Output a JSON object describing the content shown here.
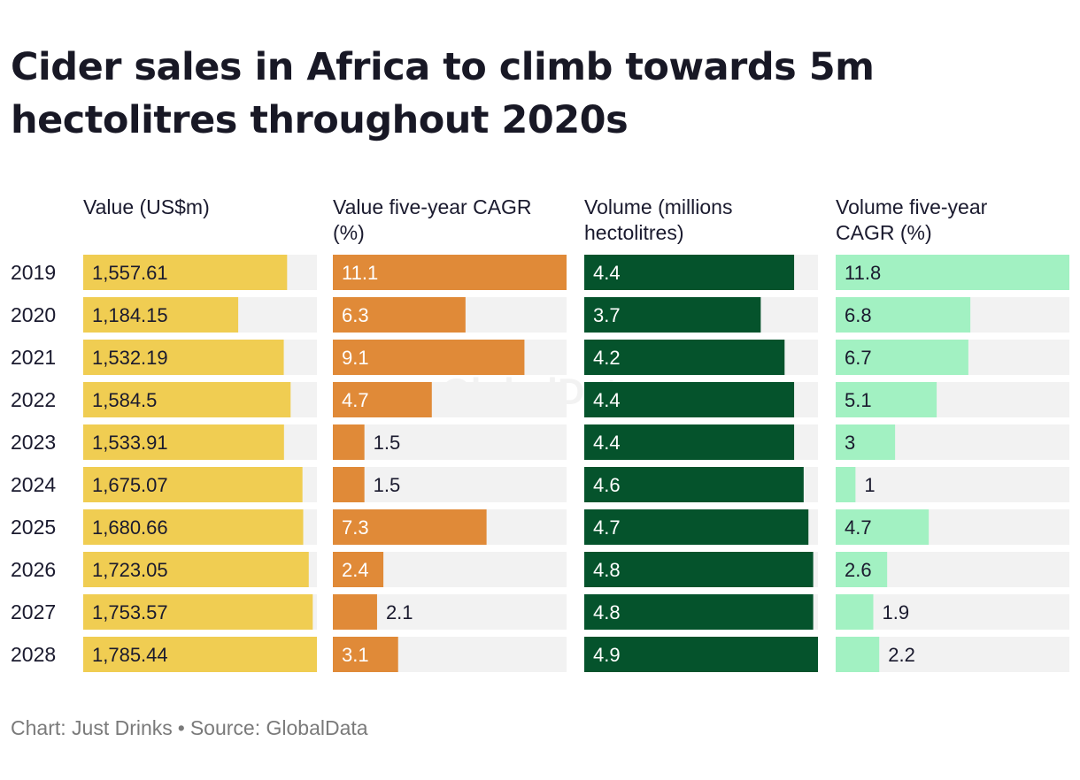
{
  "title": "Cider sales in Africa to climb towards 5m hectolitres throughout 2020s",
  "footer": {
    "chart_credit": "Chart: Just Drinks",
    "separator": "•",
    "source": "Source: GlobalData"
  },
  "watermark": "GlobalData",
  "colors": {
    "value": "#f0cd52",
    "value_cagr": "#e08a38",
    "volume": "#05532c",
    "volume_cagr": "#a2f1c2",
    "track": "#f2f2f2"
  },
  "chart_data": {
    "type": "table",
    "categories": [
      "2019",
      "2020",
      "2021",
      "2022",
      "2023",
      "2024",
      "2025",
      "2026",
      "2027",
      "2028"
    ],
    "series": [
      {
        "name": "Value (US$m)",
        "header_lines": [
          "Value (US$m)"
        ],
        "color_key": "value",
        "max": 1785.44,
        "values": [
          1557.61,
          1184.15,
          1532.19,
          1584.5,
          1533.91,
          1675.07,
          1680.66,
          1723.05,
          1753.57,
          1785.44
        ],
        "labels": [
          "1,557.61",
          "1,184.15",
          "1,532.19",
          "1,584.5",
          "1,533.91",
          "1,675.07",
          "1,680.66",
          "1,723.05",
          "1,753.57",
          "1,785.44"
        ]
      },
      {
        "name": "Value five-year CAGR (%)",
        "header_lines": [
          "Value five-year CAGR",
          "(%)"
        ],
        "color_key": "value_cagr",
        "max": 11.1,
        "values": [
          11.1,
          6.3,
          9.1,
          4.7,
          1.5,
          1.5,
          7.3,
          2.4,
          2.1,
          3.1
        ],
        "labels": [
          "11.1",
          "6.3",
          "9.1",
          "4.7",
          "1.5",
          "1.5",
          "7.3",
          "2.4",
          "2.1",
          "3.1"
        ]
      },
      {
        "name": "Volume (millions hectolitres)",
        "header_lines": [
          "Volume (millions",
          "hectolitres)"
        ],
        "color_key": "volume",
        "max": 4.9,
        "values": [
          4.4,
          3.7,
          4.2,
          4.4,
          4.4,
          4.6,
          4.7,
          4.8,
          4.8,
          4.9
        ],
        "labels": [
          "4.4",
          "3.7",
          "4.2",
          "4.4",
          "4.4",
          "4.6",
          "4.7",
          "4.8",
          "4.8",
          "4.9"
        ]
      },
      {
        "name": "Volume five-year CAGR (%)",
        "header_lines": [
          "Volume five-year",
          "CAGR (%)"
        ],
        "color_key": "volume_cagr",
        "max": 11.8,
        "values": [
          11.8,
          6.8,
          6.7,
          5.1,
          3,
          1,
          4.7,
          2.6,
          1.9,
          2.2
        ],
        "labels": [
          "11.8",
          "6.8",
          "6.7",
          "5.1",
          "3",
          "1",
          "4.7",
          "2.6",
          "1.9",
          "2.2"
        ]
      }
    ]
  }
}
